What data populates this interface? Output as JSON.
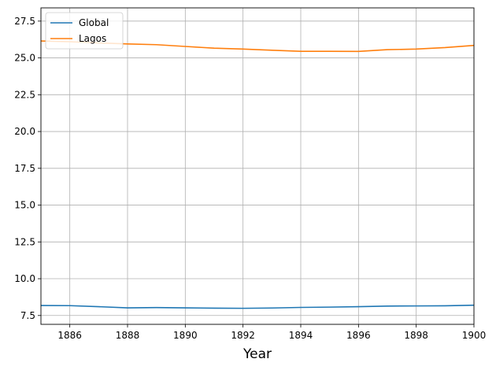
{
  "chart_data": {
    "type": "line",
    "title": "",
    "xlabel": "Year",
    "ylabel": "",
    "xlim": [
      1885,
      1900
    ],
    "ylim": [
      6.9,
      28.4
    ],
    "xticks": [
      1886,
      1888,
      1890,
      1892,
      1894,
      1896,
      1898,
      1900
    ],
    "xtick_labels": [
      "1886",
      "1888",
      "1890",
      "1892",
      "1894",
      "1896",
      "1898",
      "1900"
    ],
    "yticks": [
      7.5,
      10.0,
      12.5,
      15.0,
      17.5,
      20.0,
      22.5,
      25.0,
      27.5
    ],
    "ytick_labels": [
      "7.5",
      "10.0",
      "12.5",
      "15.0",
      "17.5",
      "20.0",
      "22.5",
      "25.0",
      "27.5"
    ],
    "grid": true,
    "legend_position": "top-left",
    "x": [
      1885,
      1886,
      1887,
      1888,
      1889,
      1890,
      1891,
      1892,
      1893,
      1894,
      1895,
      1896,
      1897,
      1898,
      1899,
      1900
    ],
    "series": [
      {
        "name": "Global",
        "color": "#1f77b4",
        "values": [
          8.18,
          8.17,
          8.1,
          8.02,
          8.04,
          8.02,
          8.0,
          7.99,
          8.01,
          8.05,
          8.07,
          8.1,
          8.14,
          8.15,
          8.16,
          8.2
        ]
      },
      {
        "name": "Lagos",
        "color": "#ff7f0e",
        "values": [
          26.15,
          26.1,
          26.02,
          25.95,
          25.9,
          25.78,
          25.66,
          25.6,
          25.52,
          25.45,
          25.45,
          25.44,
          25.56,
          25.6,
          25.7,
          25.85
        ]
      }
    ]
  }
}
